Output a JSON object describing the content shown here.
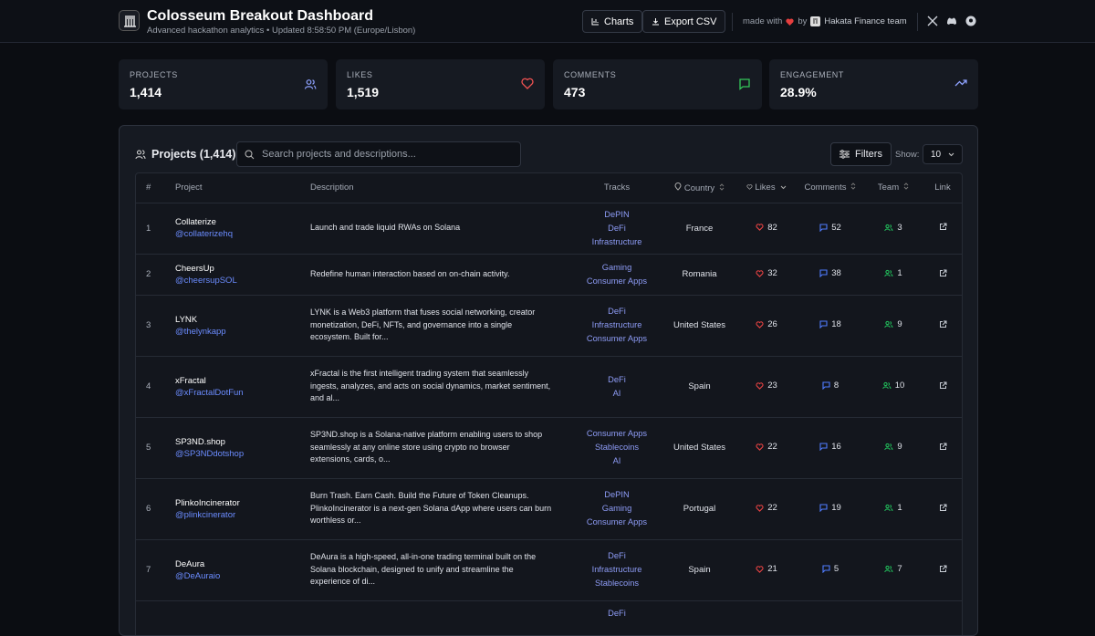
{
  "header": {
    "title": "Colosseum Breakout Dashboard",
    "subtitle": "Advanced hackathon analytics",
    "updated": "• Updated 8:58:50 PM (Europe/Lisbon)",
    "charts_button": "Charts",
    "export_button": "Export CSV",
    "made_with": "made with",
    "by": "by",
    "team": "Hakata Finance team"
  },
  "stats": [
    {
      "label": "PROJECTS",
      "value": "1,414"
    },
    {
      "label": "LIKES",
      "value": "1,519"
    },
    {
      "label": "COMMENTS",
      "value": "473"
    },
    {
      "label": "ENGAGEMENT",
      "value": "28.9%"
    }
  ],
  "panel": {
    "title": "Projects (1,414)",
    "search_placeholder": "Search projects and descriptions...",
    "filters_button": "Filters",
    "show_label": "Show:",
    "show_value": "10"
  },
  "table": {
    "columns": [
      "#",
      "Project",
      "Description",
      "Tracks",
      "Country",
      "Likes",
      "Comments",
      "Team",
      "Link"
    ],
    "rows": [
      {
        "rank": 1,
        "name": "Collaterize",
        "handle": "@collaterizehq",
        "description": "Launch and trade liquid RWAs on Solana",
        "tracks": [
          "DePIN",
          "DeFi",
          "Infrastructure"
        ],
        "country": "France",
        "likes": 82,
        "comments": 52,
        "team": 3
      },
      {
        "rank": 2,
        "name": "CheersUp",
        "handle": "@cheersupSOL",
        "description": "Redefine human interaction based on on-chain activity.",
        "tracks": [
          "Gaming",
          "Consumer Apps"
        ],
        "country": "Romania",
        "likes": 32,
        "comments": 38,
        "team": 1
      },
      {
        "rank": 3,
        "name": "LYNK",
        "handle": "@thelynkapp",
        "description": "LYNK is a Web3 platform that fuses social networking, creator monetization, DeFi, NFTs, and governance into a single ecosystem. Built for...",
        "tracks": [
          "DeFi",
          "Infrastructure",
          "Consumer Apps"
        ],
        "country": "United States",
        "likes": 26,
        "comments": 18,
        "team": 9
      },
      {
        "rank": 4,
        "name": "xFractal",
        "handle": "@xFractalDotFun",
        "description": "xFractal is the first intelligent trading system that seamlessly ingests, analyzes, and acts on social dynamics, market sentiment, and al...",
        "tracks": [
          "DeFi",
          "AI"
        ],
        "country": "Spain",
        "likes": 23,
        "comments": 8,
        "team": 10
      },
      {
        "rank": 5,
        "name": "SP3ND.shop",
        "handle": "@SP3NDdotshop",
        "description": "SP3ND.shop is a Solana-native platform enabling users to shop seamlessly at any online store using crypto no browser extensions, cards, o...",
        "tracks": [
          "Consumer Apps",
          "Stablecoins",
          "AI"
        ],
        "country": "United States",
        "likes": 22,
        "comments": 16,
        "team": 9
      },
      {
        "rank": 6,
        "name": "PlinkoIncinerator",
        "handle": "@plinkcinerator",
        "description": "Burn Trash. Earn Cash. Build the Future of Token Cleanups. PlinkoIncinerator is a next-gen Solana dApp where users can burn worthless or...",
        "tracks": [
          "DePIN",
          "Gaming",
          "Consumer Apps"
        ],
        "country": "Portugal",
        "likes": 22,
        "comments": 19,
        "team": 1
      },
      {
        "rank": 7,
        "name": "DeAura",
        "handle": "@DeAuraio",
        "description": "DeAura is a high-speed, all-in-one trading terminal built on the Solana blockchain, designed to unify and streamline the experience of di...",
        "tracks": [
          "DeFi",
          "Infrastructure",
          "Stablecoins"
        ],
        "country": "Spain",
        "likes": 21,
        "comments": 5,
        "team": 7
      },
      {
        "tracks": [
          "DeFi"
        ]
      }
    ]
  }
}
